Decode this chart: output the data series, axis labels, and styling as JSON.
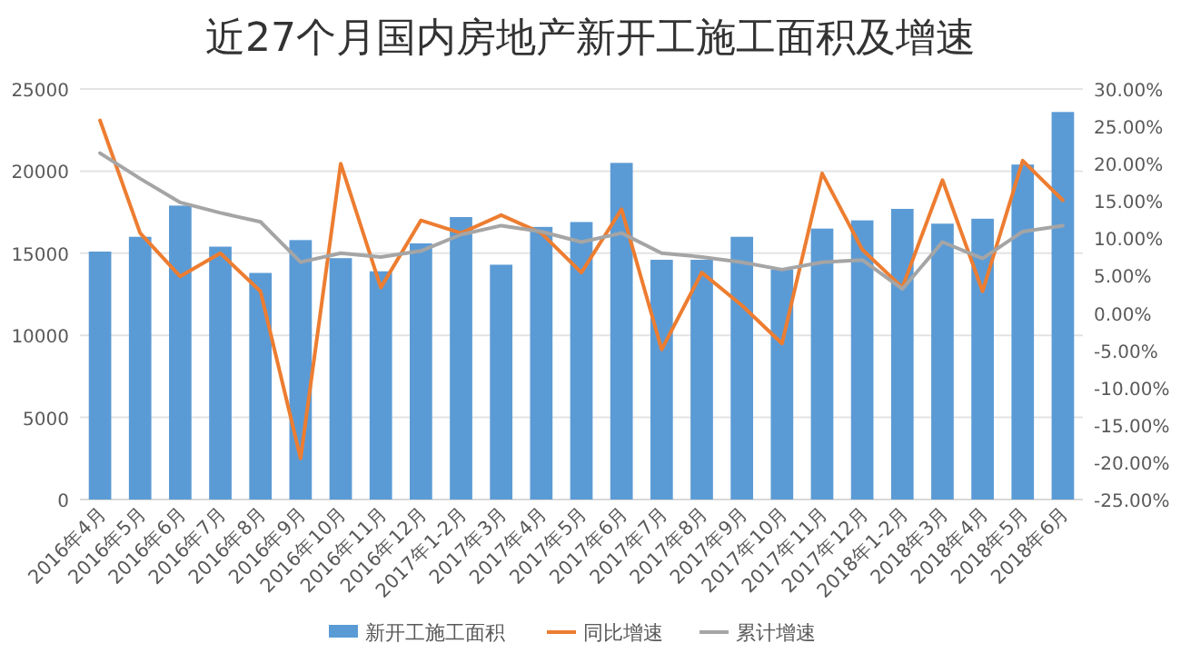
{
  "chart_data": {
    "type": "bar",
    "title": "近27个月国内房地产新开工施工面积及增速",
    "categories": [
      "2016年4月",
      "2016年5月",
      "2016年6月",
      "2016年7月",
      "2016年8月",
      "2016年9月",
      "2016年10月",
      "2016年11月",
      "2016年12月",
      "2017年1-2月",
      "2017年3月",
      "2017年4月",
      "2017年5月",
      "2017年6月",
      "2017年7月",
      "2017年8月",
      "2017年9月",
      "2017年10月",
      "2017年11月",
      "2017年12月",
      "2018年1-2月",
      "2018年3月",
      "2018年4月",
      "2018年5月",
      "2018年6月"
    ],
    "series": [
      {
        "name": "新开工施工面积",
        "color": "#5b9bd5",
        "values": [
          15100,
          16000,
          17900,
          15400,
          13800,
          15800,
          14700,
          13900,
          15600,
          17200,
          14300,
          16600,
          16900,
          20500,
          14600,
          14600,
          16000,
          14000,
          16500,
          17000,
          17700,
          16800,
          17100,
          20400,
          23600
        ]
      },
      {
        "name": "同比增速",
        "type": "line",
        "axis": "y2",
        "color": "#ed7d31",
        "values": [
          25.8,
          10.7,
          4.9,
          8.0,
          2.9,
          -19.5,
          20.0,
          3.4,
          12.4,
          10.7,
          13.1,
          10.7,
          5.4,
          13.9,
          -4.9,
          5.4,
          1.0,
          -4.1,
          18.7,
          8.5,
          3.4,
          17.8,
          2.9,
          20.4,
          15.1
        ]
      },
      {
        "name": "累计增速",
        "type": "line",
        "axis": "y2",
        "color": "#a5a5a5",
        "values": [
          21.4,
          18.0,
          14.8,
          13.4,
          12.2,
          6.8,
          8.0,
          7.5,
          8.3,
          10.5,
          11.7,
          10.9,
          9.5,
          10.7,
          8.0,
          7.5,
          6.8,
          5.8,
          6.8,
          7.1,
          3.2,
          9.5,
          7.3,
          10.9,
          11.7
        ]
      }
    ],
    "ylim": [
      0,
      25000
    ],
    "yticks": [
      0,
      5000,
      10000,
      15000,
      20000,
      25000
    ],
    "y2lim": [
      -25,
      30
    ],
    "y2ticks": [
      {
        "value": -25,
        "label": "-25.00%"
      },
      {
        "value": -20,
        "label": "-20.00%"
      },
      {
        "value": -15,
        "label": "-15.00%"
      },
      {
        "value": -10,
        "label": "-10.00%"
      },
      {
        "value": -5,
        "label": "-5.00%"
      },
      {
        "value": 0,
        "label": "0.00%"
      },
      {
        "value": 5,
        "label": "5.00%"
      },
      {
        "value": 10,
        "label": "10.00%"
      },
      {
        "value": 15,
        "label": "15.00%"
      },
      {
        "value": 20,
        "label": "20.00%"
      },
      {
        "value": 25,
        "label": "25.00%"
      },
      {
        "value": 30,
        "label": "30.00%"
      }
    ],
    "grid": "y",
    "legend": "bottom",
    "marker": "none",
    "line_style": "solid"
  }
}
